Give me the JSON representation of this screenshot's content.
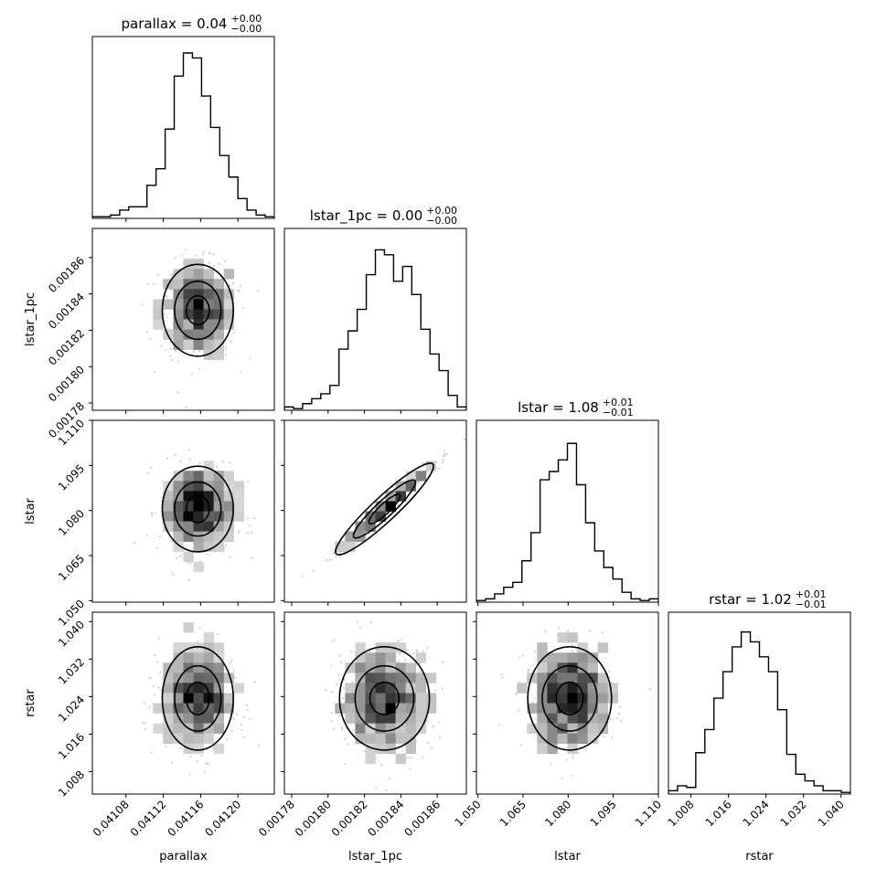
{
  "chart_data": {
    "type": "corner",
    "parameters": [
      "parallax",
      "lstar_1pc",
      "lstar",
      "rstar"
    ],
    "axis_labels": [
      "parallax",
      "lstar_1pc",
      "lstar",
      "rstar"
    ],
    "titles": [
      {
        "name": "parallax",
        "value": "0.04",
        "plus": "+0.00",
        "minus": "−0.00"
      },
      {
        "name": "lstar_1pc",
        "value": "0.00",
        "plus": "+0.00",
        "minus": "−0.00"
      },
      {
        "name": "lstar",
        "value": "1.08",
        "plus": "+0.01",
        "minus": "−0.01"
      },
      {
        "name": "rstar",
        "value": "1.02",
        "plus": "+0.01",
        "minus": "−0.01"
      }
    ],
    "ranges": [
      [
        0.041044,
        0.041239
      ],
      [
        0.001776,
        0.001876
      ],
      [
        1.0495,
        1.11
      ],
      [
        1.0032,
        1.042
      ]
    ],
    "ticks": [
      [
        "0.04108",
        "0.04112",
        "0.04116",
        "0.04120"
      ],
      [
        "0.00178",
        "0.00180",
        "0.00182",
        "0.00184",
        "0.00186"
      ],
      [
        "1.050",
        "1.065",
        "1.080",
        "1.095",
        "1.110"
      ],
      [
        "1.008",
        "1.016",
        "1.024",
        "1.032",
        "1.040"
      ]
    ],
    "tick_values": [
      [
        0.04108,
        0.04112,
        0.04116,
        0.0412
      ],
      [
        0.00178,
        0.0018,
        0.00182,
        0.00184,
        0.00186
      ],
      [
        1.05,
        1.065,
        1.08,
        1.095,
        1.11
      ],
      [
        1.008,
        1.016,
        1.024,
        1.032,
        1.04
      ]
    ],
    "histograms": [
      [
        0.01,
        0.01,
        0.02,
        0.05,
        0.07,
        0.07,
        0.2,
        0.3,
        0.54,
        0.86,
        1.0,
        0.97,
        0.74,
        0.55,
        0.38,
        0.25,
        0.12,
        0.05,
        0.02,
        0.01
      ],
      [
        0.02,
        0.01,
        0.04,
        0.07,
        0.1,
        0.15,
        0.37,
        0.48,
        0.61,
        0.82,
        0.97,
        0.94,
        0.78,
        0.87,
        0.7,
        0.49,
        0.34,
        0.24,
        0.09,
        0.02
      ],
      [
        0.01,
        0.02,
        0.05,
        0.09,
        0.12,
        0.25,
        0.42,
        0.74,
        0.79,
        0.86,
        0.96,
        0.71,
        0.48,
        0.31,
        0.21,
        0.14,
        0.06,
        0.02,
        0.01,
        0.02
      ],
      [
        0.02,
        0.05,
        0.04,
        0.25,
        0.39,
        0.58,
        0.74,
        0.89,
        0.98,
        0.92,
        0.83,
        0.74,
        0.51,
        0.24,
        0.12,
        0.08,
        0.05,
        0.02,
        0.02,
        0.01
      ]
    ],
    "correlations": {
      "1-0": 0.0,
      "2-0": 0.0,
      "2-1": 0.985,
      "3-0": 0.0,
      "3-1": 0.0,
      "3-2": 0.0
    },
    "estimates": [
      {
        "mean": 0.041157,
        "sd": 2.05e-05
      },
      {
        "mean": 0.001831,
        "sd": 1.33e-05
      },
      {
        "mean": 1.0805,
        "sd": 0.0075
      },
      {
        "mean": 1.0236,
        "sd": 0.0058
      }
    ]
  }
}
